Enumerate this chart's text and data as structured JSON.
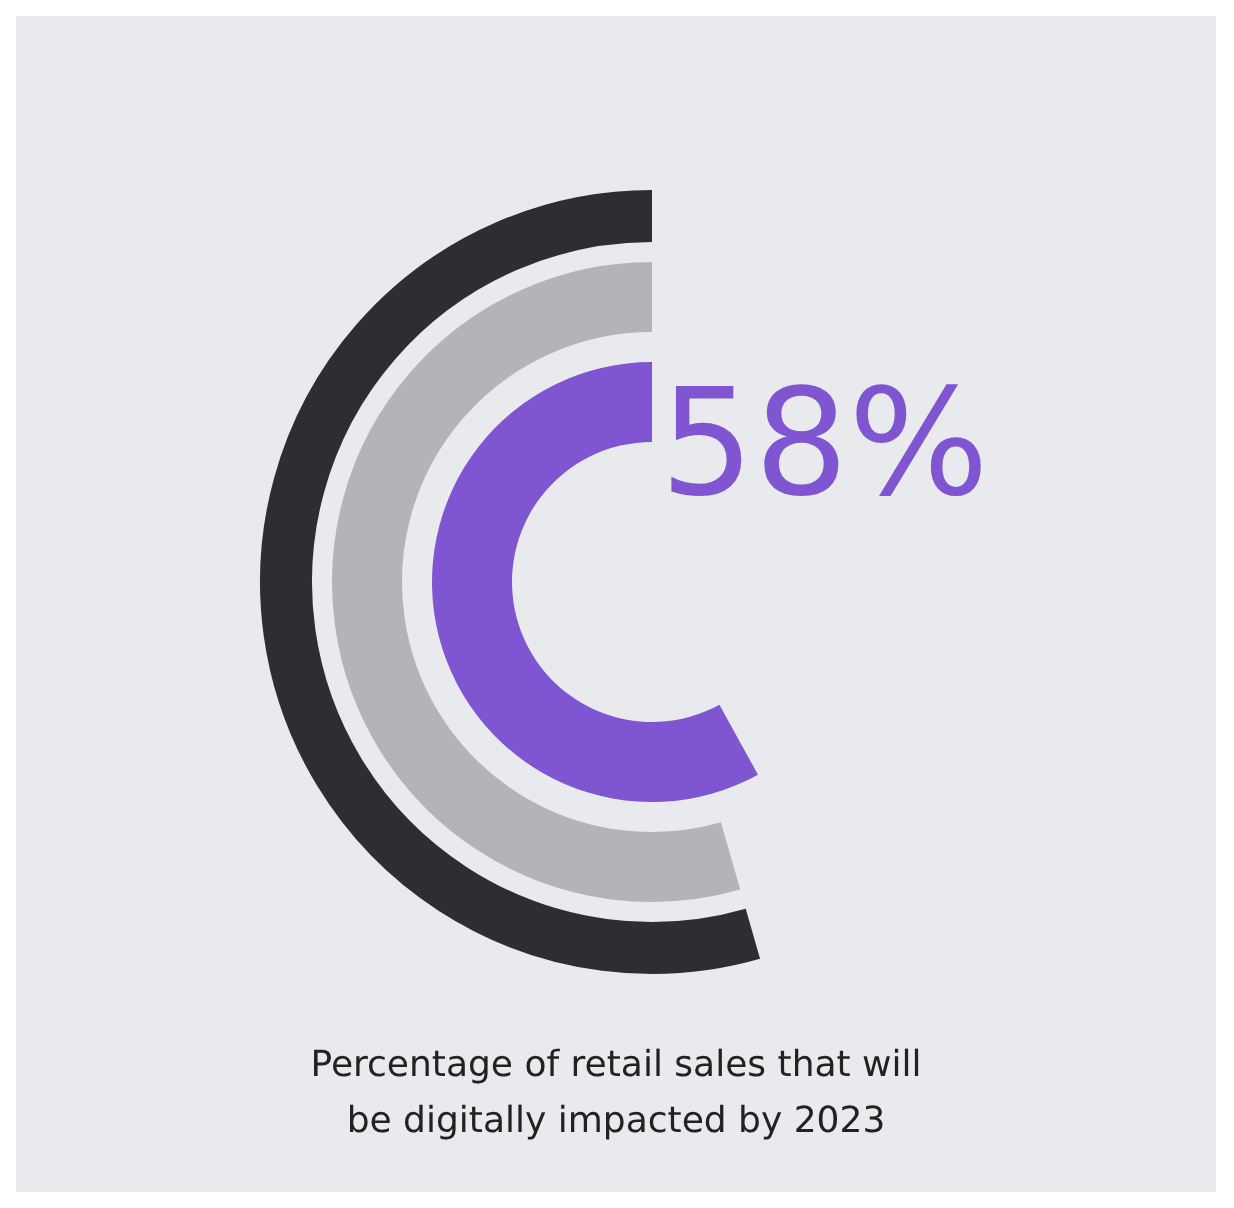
{
  "chart_data": {
    "type": "pie",
    "title": "Percentage of retail sales that will be digitally impacted by 2023",
    "categories": [
      null
    ],
    "values": [
      58
    ],
    "colors": [
      "#7f55d1"
    ],
    "value_labels": [
      "58%"
    ]
  }
}
